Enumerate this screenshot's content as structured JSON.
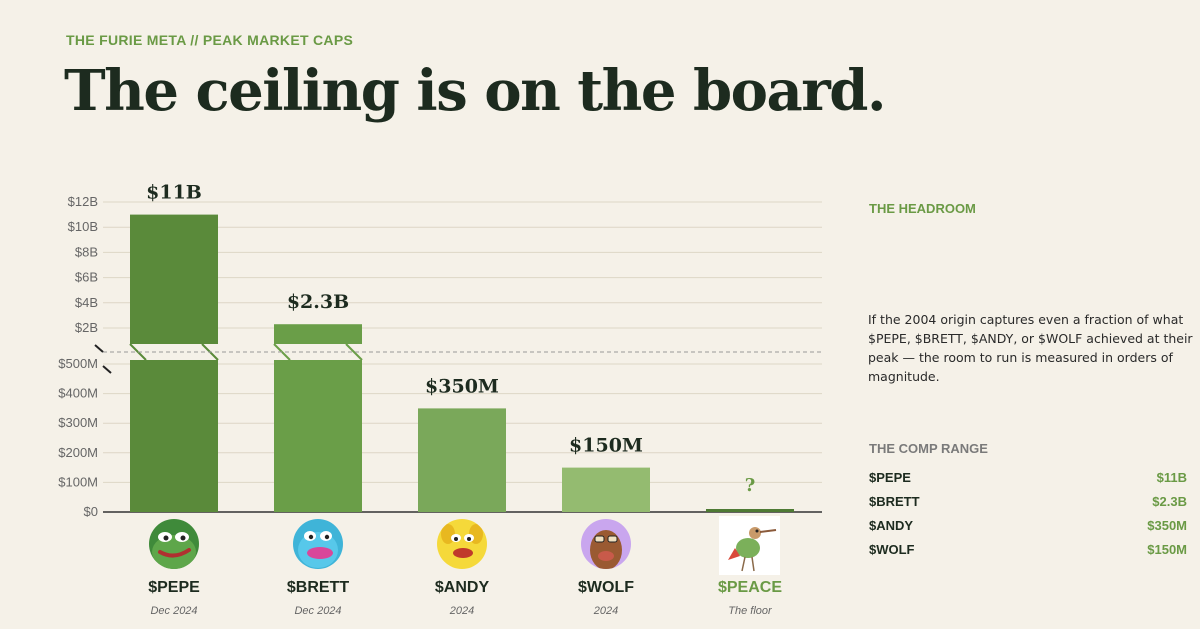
{
  "header": {
    "eyebrow": "THE FURIE META  //  PEAK MARKET CAPS",
    "title": "The ceiling is on the board."
  },
  "chart_data": {
    "type": "bar",
    "title": "",
    "xlabel": "",
    "ylabel": "",
    "axis_break": true,
    "lower_axis": {
      "range": [
        0,
        500
      ],
      "unit": "M",
      "ticks": [
        "$0",
        "$100M",
        "$200M",
        "$300M",
        "$400M",
        "$500M"
      ]
    },
    "upper_axis": {
      "range": [
        2,
        12
      ],
      "unit": "B",
      "ticks": [
        "$2B",
        "$4B",
        "$6B",
        "$8B",
        "$10B",
        "$12B"
      ]
    },
    "grid": true,
    "categories": [
      "$PEPE",
      "$BRETT",
      "$ANDY",
      "$WOLF",
      "$PEACE"
    ],
    "dates": [
      "Dec 2024",
      "Dec 2024",
      "2024",
      "2024",
      "The floor"
    ],
    "values_usd_millions": [
      11000,
      2300,
      350,
      150,
      5
    ],
    "data_labels": [
      "$11B",
      "$2.3B",
      "$350M",
      "$150M",
      "?"
    ],
    "bar_colors": [
      "#5a8a3a",
      "#6a9e48",
      "#7aa85a",
      "#94bb70",
      "#4e7a34"
    ],
    "highlight_category": "$PEACE",
    "icons": [
      "pepe-frog-avatar",
      "brett-blue-avatar",
      "andy-yellow-dog-avatar",
      "wolf-brown-avatar",
      "peace-bird-image"
    ]
  },
  "sidebar": {
    "headroom_heading": "THE HEADROOM",
    "headroom_text": "If the 2004 origin captures even a fraction of what $PEPE, $BRETT, $ANDY, or $WOLF achieved at their peak — the room to run is measured in orders of magnitude.",
    "comp_heading": "THE COMP RANGE",
    "comp_range": [
      {
        "name": "$PEPE",
        "value": "$11B"
      },
      {
        "name": "$BRETT",
        "value": "$2.3B"
      },
      {
        "name": "$ANDY",
        "value": "$350M"
      },
      {
        "name": "$WOLF",
        "value": "$150M"
      }
    ]
  },
  "colors": {
    "background": "#f5f1e8",
    "accent": "#6a9a45",
    "ink": "#1d2b1f"
  }
}
